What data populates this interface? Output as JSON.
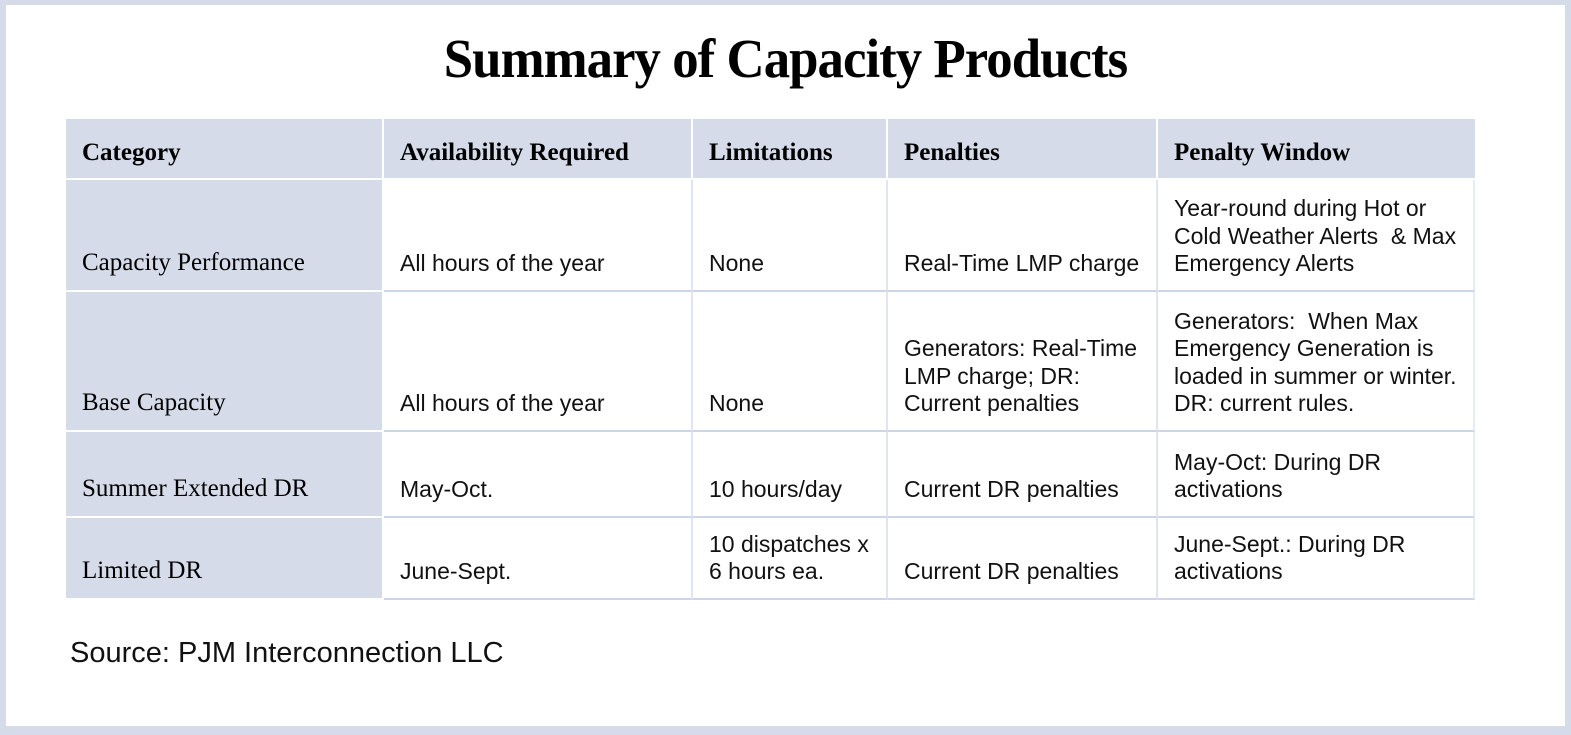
{
  "title": "Summary of Capacity Products",
  "source": "Source: PJM Interconnection LLC",
  "colors": {
    "cell_shade": "#d5dbe9",
    "frame_border": "#d5dbe9",
    "row_divider": "#ccd6e9",
    "white_divider": "#ffffff"
  },
  "table": {
    "columns": [
      "Category",
      "Availability Required",
      "Limitations",
      "Penalties",
      "Penalty Window"
    ],
    "rows": [
      {
        "category": "Capacity Performance",
        "availability": "All hours of the year",
        "limitations": "None",
        "penalties": "Real-Time LMP charge",
        "penalty_window": "Year-round during Hot or Cold Weather Alerts  & Max Emergency Alerts"
      },
      {
        "category": "Base Capacity",
        "availability": "All hours of the year",
        "limitations": "None",
        "penalties": "Generators: Real-Time LMP charge; DR: Current penalties",
        "penalty_window": "Generators:  When Max Emergency Generation is loaded in summer or winter. DR: current rules."
      },
      {
        "category": "Summer Extended DR",
        "availability": "May-Oct.",
        "limitations": "10 hours/day",
        "penalties": "Current DR penalties",
        "penalty_window": "May-Oct: During DR activations"
      },
      {
        "category": "Limited DR",
        "availability": "June-Sept.",
        "limitations": "10 dispatches x 6 hours ea.",
        "penalties": "Current DR penalties",
        "penalty_window": "June-Sept.: During DR activations"
      }
    ]
  }
}
